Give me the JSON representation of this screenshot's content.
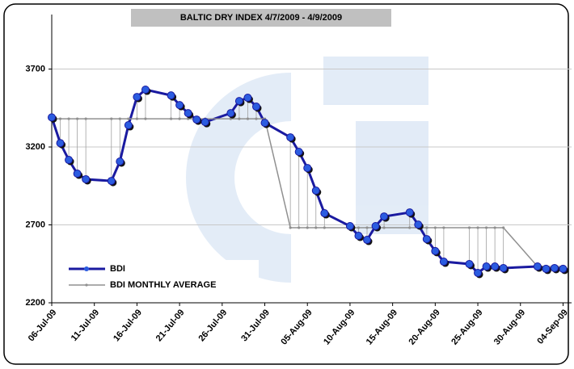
{
  "chart_data": {
    "type": "line",
    "title": "BALTIC DRY INDEX 4/7/2009 - 4/9/2009",
    "x": [
      "2009-07-06",
      "2009-07-07",
      "2009-07-08",
      "2009-07-09",
      "2009-07-10",
      "2009-07-13",
      "2009-07-14",
      "2009-07-15",
      "2009-07-16",
      "2009-07-17",
      "2009-07-20",
      "2009-07-21",
      "2009-07-22",
      "2009-07-23",
      "2009-07-24",
      "2009-07-27",
      "2009-07-28",
      "2009-07-29",
      "2009-07-30",
      "2009-07-31",
      "2009-08-03",
      "2009-08-04",
      "2009-08-05",
      "2009-08-06",
      "2009-08-07",
      "2009-08-10",
      "2009-08-11",
      "2009-08-12",
      "2009-08-13",
      "2009-08-14",
      "2009-08-17",
      "2009-08-18",
      "2009-08-19",
      "2009-08-20",
      "2009-08-21",
      "2009-08-24",
      "2009-08-25",
      "2009-08-26",
      "2009-08-27",
      "2009-08-28",
      "2009-09-01",
      "2009-09-02",
      "2009-09-03",
      "2009-09-04"
    ],
    "series": [
      {
        "name": "BDI",
        "color": "#1a1aa0",
        "values": [
          3390,
          3225,
          3117,
          3029,
          2993,
          2982,
          3107,
          3340,
          3521,
          3568,
          3531,
          3469,
          3417,
          3376,
          3360,
          3417,
          3495,
          3516,
          3459,
          3355,
          3262,
          3169,
          3065,
          2920,
          2775,
          2692,
          2630,
          2604,
          2692,
          2754,
          2780,
          2702,
          2609,
          2532,
          2464,
          2449,
          2392,
          2433,
          2433,
          2423,
          2433,
          2418,
          2423,
          2418
        ]
      },
      {
        "name": "BDI MONTHLY AVERAGE",
        "color": "#909090",
        "values": [
          3381,
          3381,
          3381,
          3381,
          3381,
          3381,
          3381,
          3381,
          3381,
          3381,
          3381,
          3381,
          3381,
          3381,
          3381,
          3381,
          3381,
          3381,
          3381,
          3381,
          2682,
          2682,
          2682,
          2682,
          2682,
          2682,
          2682,
          2682,
          2682,
          2682,
          2682,
          2682,
          2682,
          2682,
          2682,
          2682,
          2682,
          2682,
          2682,
          2682,
          2433,
          2433,
          2433,
          2433
        ]
      }
    ],
    "xlim": [
      "2009-07-06",
      "2009-09-05"
    ],
    "xticks": [
      {
        "value": "2009-07-06",
        "label": "06-Jul-09"
      },
      {
        "value": "2009-07-11",
        "label": "11-Jul-09"
      },
      {
        "value": "2009-07-16",
        "label": "16-Jul-09"
      },
      {
        "value": "2009-07-21",
        "label": "21-Jul-09"
      },
      {
        "value": "2009-07-26",
        "label": "26-Jul-09"
      },
      {
        "value": "2009-07-31",
        "label": "31-Jul-09"
      },
      {
        "value": "2009-08-05",
        "label": "05-Aug-09"
      },
      {
        "value": "2009-08-10",
        "label": "10-Aug-09"
      },
      {
        "value": "2009-08-15",
        "label": "15-Aug-09"
      },
      {
        "value": "2009-08-20",
        "label": "20-Aug-09"
      },
      {
        "value": "2009-08-25",
        "label": "25-Aug-09"
      },
      {
        "value": "2009-08-30",
        "label": "30-Aug-09"
      },
      {
        "value": "2009-09-04",
        "label": "04-Sep-09"
      }
    ],
    "ylim": [
      2200,
      4050
    ],
    "yticks": [
      2200,
      2700,
      3200,
      3700
    ],
    "grid": true,
    "legend": "lower left"
  }
}
